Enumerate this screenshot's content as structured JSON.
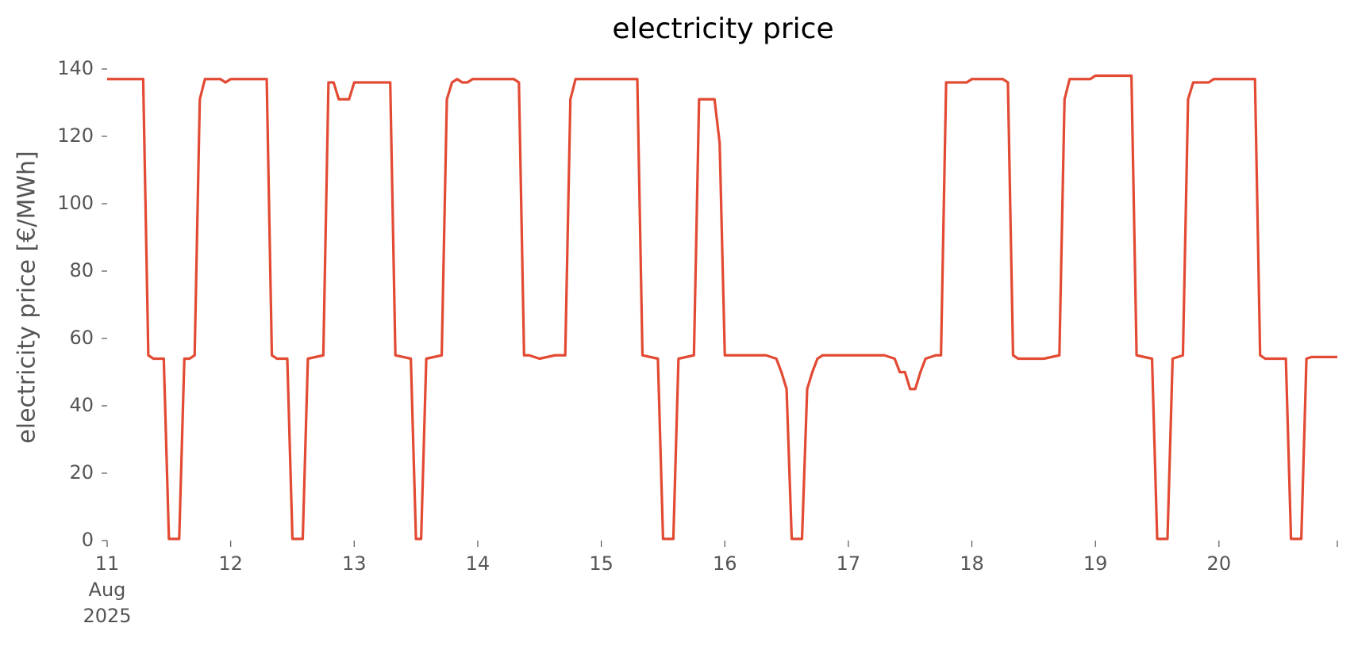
{
  "chart_data": {
    "type": "line",
    "title": "electricity price",
    "y_label": "electricity price [€/MWh]",
    "color": "#E24A33",
    "grid": false,
    "x": [
      "2025-08-11T00:00",
      "2025-08-11T07:00",
      "2025-08-11T08:00",
      "2025-08-11T09:00",
      "2025-08-11T11:00",
      "2025-08-11T12:00",
      "2025-08-11T14:00",
      "2025-08-11T15:00",
      "2025-08-11T16:00",
      "2025-08-11T17:00",
      "2025-08-11T18:00",
      "2025-08-11T19:00",
      "2025-08-11T22:00",
      "2025-08-11T23:00",
      "2025-08-12T00:00",
      "2025-08-12T07:00",
      "2025-08-12T08:00",
      "2025-08-12T09:00",
      "2025-08-12T11:00",
      "2025-08-12T12:00",
      "2025-08-12T14:00",
      "2025-08-12T15:00",
      "2025-08-12T18:00",
      "2025-08-12T19:00",
      "2025-08-12T20:00",
      "2025-08-12T21:00",
      "2025-08-12T23:00",
      "2025-08-13T00:00",
      "2025-08-13T07:00",
      "2025-08-13T08:00",
      "2025-08-13T11:00",
      "2025-08-13T12:00",
      "2025-08-13T13:00",
      "2025-08-13T14:00",
      "2025-08-13T17:00",
      "2025-08-13T18:00",
      "2025-08-13T19:00",
      "2025-08-13T20:00",
      "2025-08-13T21:00",
      "2025-08-13T22:00",
      "2025-08-13T23:00",
      "2025-08-14T07:00",
      "2025-08-14T08:00",
      "2025-08-14T09:00",
      "2025-08-14T10:00",
      "2025-08-14T12:00",
      "2025-08-14T15:00",
      "2025-08-14T17:00",
      "2025-08-14T18:00",
      "2025-08-14T19:00",
      "2025-08-15T07:00",
      "2025-08-15T08:00",
      "2025-08-15T11:00",
      "2025-08-15T12:00",
      "2025-08-15T14:00",
      "2025-08-15T15:00",
      "2025-08-15T18:00",
      "2025-08-15T19:00",
      "2025-08-15T22:00",
      "2025-08-15T23:00",
      "2025-08-16T00:00",
      "2025-08-16T08:00",
      "2025-08-16T10:00",
      "2025-08-16T11:00",
      "2025-08-16T12:00",
      "2025-08-16T13:00",
      "2025-08-16T15:00",
      "2025-08-16T16:00",
      "2025-08-16T17:00",
      "2025-08-16T18:00",
      "2025-08-16T19:00",
      "2025-08-17T07:00",
      "2025-08-17T09:00",
      "2025-08-17T10:00",
      "2025-08-17T11:00",
      "2025-08-17T12:00",
      "2025-08-17T13:00",
      "2025-08-17T14:00",
      "2025-08-17T15:00",
      "2025-08-17T17:00",
      "2025-08-17T18:00",
      "2025-08-17T19:00",
      "2025-08-17T23:00",
      "2025-08-18T00:00",
      "2025-08-18T06:00",
      "2025-08-18T07:00",
      "2025-08-18T08:00",
      "2025-08-18T09:00",
      "2025-08-18T14:00",
      "2025-08-18T17:00",
      "2025-08-18T18:00",
      "2025-08-18T19:00",
      "2025-08-18T23:00",
      "2025-08-19T00:00",
      "2025-08-19T07:00",
      "2025-08-19T08:00",
      "2025-08-19T11:00",
      "2025-08-19T12:00",
      "2025-08-19T14:00",
      "2025-08-19T15:00",
      "2025-08-19T17:00",
      "2025-08-19T18:00",
      "2025-08-19T19:00",
      "2025-08-19T22:00",
      "2025-08-19T23:00",
      "2025-08-20T07:00",
      "2025-08-20T08:00",
      "2025-08-20T09:00",
      "2025-08-20T13:00",
      "2025-08-20T14:00",
      "2025-08-20T16:00",
      "2025-08-20T17:00",
      "2025-08-20T18:00",
      "2025-08-20T23:00"
    ],
    "values": [
      137,
      137,
      55,
      54,
      54,
      0.5,
      0.5,
      54,
      54,
      55,
      131,
      137,
      137,
      136,
      137,
      137,
      55,
      54,
      54,
      0.5,
      0.5,
      54,
      55,
      136,
      136,
      131,
      131,
      136,
      136,
      55,
      54,
      0.5,
      0.5,
      54,
      55,
      131,
      136,
      137,
      136,
      136,
      137,
      137,
      136,
      55,
      55,
      54,
      55,
      55,
      131,
      137,
      137,
      55,
      54,
      0.5,
      0.5,
      54,
      55,
      131,
      131,
      118,
      55,
      55,
      54,
      50,
      45,
      0.5,
      0.5,
      45,
      50,
      54,
      55,
      55,
      54,
      50,
      50,
      45,
      45,
      50,
      54,
      55,
      55,
      136,
      136,
      137,
      137,
      136,
      55,
      54,
      54,
      55,
      131,
      137,
      137,
      138,
      138,
      55,
      54,
      0.5,
      0.5,
      54,
      55,
      131,
      136,
      136,
      137,
      137,
      55,
      54,
      54,
      0.5,
      0.5,
      54,
      54.5,
      54.5
    ],
    "xlim": [
      "2025-08-11T00:00",
      "2025-08-20T23:00"
    ],
    "xticks": [
      {
        "value": "2025-08-11T00:00",
        "label": "11\nAug\n2025"
      },
      {
        "value": "2025-08-12T00:00",
        "label": "12"
      },
      {
        "value": "2025-08-13T00:00",
        "label": "13"
      },
      {
        "value": "2025-08-14T00:00",
        "label": "14"
      },
      {
        "value": "2025-08-15T00:00",
        "label": "15"
      },
      {
        "value": "2025-08-16T00:00",
        "label": "16"
      },
      {
        "value": "2025-08-17T00:00",
        "label": "17"
      },
      {
        "value": "2025-08-18T00:00",
        "label": "18"
      },
      {
        "value": "2025-08-19T00:00",
        "label": "19"
      },
      {
        "value": "2025-08-20T00:00",
        "label": "20"
      }
    ],
    "ylim": [
      0,
      140
    ],
    "yticks": [
      0,
      20,
      40,
      60,
      80,
      100,
      120,
      140
    ]
  }
}
